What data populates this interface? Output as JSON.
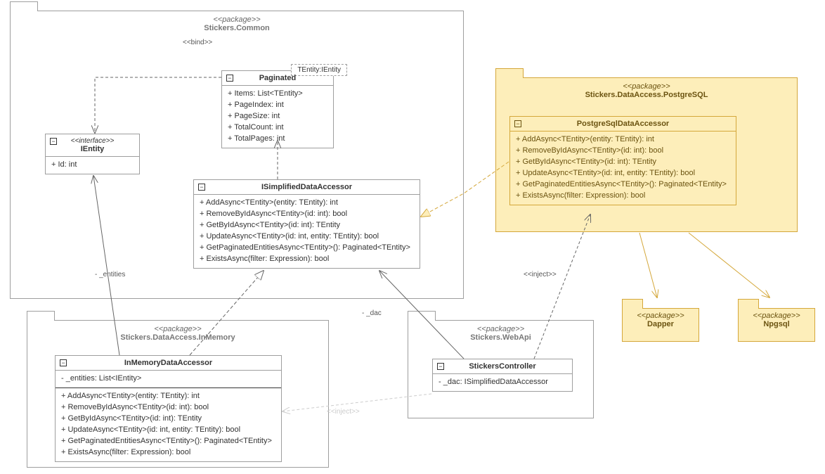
{
  "colors": {
    "normal_border": "#9e9e9e",
    "normal_text": "#333333",
    "hl_border": "#d4a73a",
    "hl_bg": "#fdeeba",
    "hl_text": "#6b5310",
    "grey_text": "#777777"
  },
  "packages": {
    "common": {
      "stereotype": "<<package>>",
      "name": "Stickers.Common"
    },
    "inmem": {
      "stereotype": "<<package>>",
      "name": "Stickers.DataAccess.InMemory"
    },
    "pg": {
      "stereotype": "<<package>>",
      "name": "Stickers.DataAccess.PostgreSQL"
    },
    "webapi": {
      "stereotype": "<<package>>",
      "name": "Stickers.WebApi"
    },
    "dapper": {
      "stereotype": "<<package>>",
      "name": "Dapper"
    },
    "npgsql": {
      "stereotype": "<<package>>",
      "name": "Npgsql"
    }
  },
  "classes": {
    "ientity": {
      "stereotype": "<<interface>>",
      "name": "IEntity",
      "attrs": [
        "+ Id: int"
      ]
    },
    "paginated": {
      "name": "Paginated",
      "template": "TEntity:IEntity",
      "attrs": [
        "+ Items: List<TEntity>",
        "+ PageIndex: int",
        "+ PageSize: int",
        "+ TotalCount: int",
        "+ TotalPages: int"
      ]
    },
    "isda": {
      "name": "ISimplifiedDataAccessor",
      "ops": [
        "+ AddAsync<TEntity>(entity: TEntity): int",
        "+ RemoveByIdAsync<TEntity>(id: int): bool",
        "+ GetByIdAsync<TEntity>(id: int): TEntity",
        "+ UpdateAsync<TEntity>(id: int, entity: TEntity): bool",
        "+ GetPaginatedEntitiesAsync<TEntity>(): Paginated<TEntity>",
        "+ ExistsAsync(filter: Expression): bool"
      ]
    },
    "inmemda": {
      "name": "InMemoryDataAccessor",
      "attrs": [
        "- _entities: List<IEntity>"
      ],
      "ops": [
        "+ AddAsync<TEntity>(entity: TEntity): int",
        "+ RemoveByIdAsync<TEntity>(id: int): bool",
        "+ GetByIdAsync<TEntity>(id: int): TEntity",
        "+ UpdateAsync<TEntity>(id: int, entity: TEntity): bool",
        "+ GetPaginatedEntitiesAsync<TEntity>(): Paginated<TEntity>",
        "+ ExistsAsync(filter: Expression): bool"
      ]
    },
    "pgda": {
      "name": "PostgreSqlDataAccessor",
      "ops": [
        "+ AddAsync<TEntity>(entity: TEntity): int",
        "+ RemoveByIdAsync<TEntity>(id: int): bool",
        "+ GetByIdAsync<TEntity>(id: int): TEntity",
        "+ UpdateAsync<TEntity>(id: int, entity: TEntity): bool",
        "+ GetPaginatedEntitiesAsync<TEntity>(): Paginated<TEntity>",
        "+ ExistsAsync(filter: Expression): bool"
      ]
    },
    "controller": {
      "name": "StickersController",
      "attrs": [
        "- _dac: ISimplifiedDataAccessor"
      ]
    }
  },
  "labels": {
    "bind": "<<bind>>",
    "entities": "- _entities",
    "dac": "- _dac",
    "inject": "<<inject>>"
  }
}
